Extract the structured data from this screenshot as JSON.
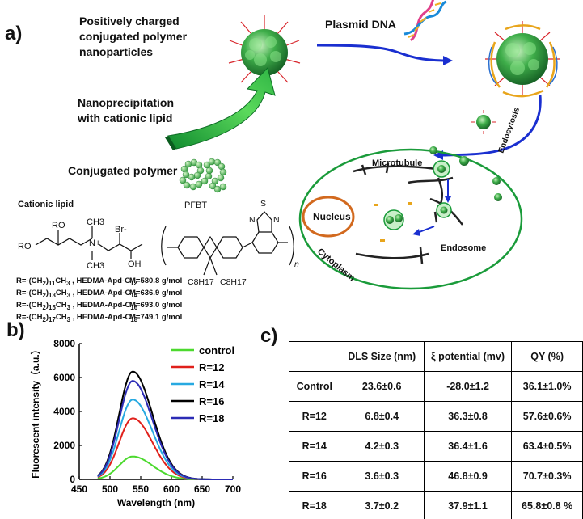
{
  "panel_a": {
    "label": "a)",
    "np_title": [
      "Positively charged",
      "conjugated polymer",
      "nanoparticles"
    ],
    "plasmid": "Plasmid DNA",
    "nanoprecip": [
      "Nanoprecipitation",
      "with cationic lipid"
    ],
    "conj_polymer": "Conjugated polymer",
    "cationic_lipid": "Cationic lipid",
    "pfbt": "PFBT",
    "endocytosis": "Endocytosis",
    "cell": {
      "microtubule": "Microtubule",
      "nucleus": "Nucleus",
      "cytoplasm": "Cytoplasm",
      "endosome": "Endosome"
    },
    "lipid_chem": {
      "ro1": "RO",
      "ro2": "RO",
      "n_plus": "N+",
      "ch3_top": "CH3",
      "ch3_bot": "CH3",
      "br": "Br-",
      "oh": "OH"
    },
    "pfbt_chem": {
      "s": "S",
      "n1": "N",
      "n2": "N",
      "n": "n",
      "c8a": "C8H17",
      "c8b": "C8H17"
    },
    "lipids": [
      {
        "r": "R=-(CH2)11CH3 , HEDMA-Apd-C12",
        "m": "M=580.8 g/mol"
      },
      {
        "r": "R=-(CH2)13CH3 , HEDMA-Apd-C14",
        "m": "M=636.9 g/mol"
      },
      {
        "r": "R=-(CH2)15CH3 , HEDMA-Apd-C16",
        "m": "M=693.0 g/mol"
      },
      {
        "r": "R=-(CH2)17CH3 , HEDMA-Apd-C18",
        "m": "M=749.1 g/mol"
      }
    ]
  },
  "panel_b": {
    "label": "b)"
  },
  "panel_c": {
    "label": "c)",
    "headers": [
      "",
      "DLS Size (nm)",
      "ξ potential (mv)",
      "QY (%)"
    ],
    "rows": [
      [
        "Control",
        "23.6±0.6",
        "-28.0±1.2",
        "36.1±1.0%"
      ],
      [
        "R=12",
        "6.8±0.4",
        "36.3±0.8",
        "57.6±0.6%"
      ],
      [
        "R=14",
        "4.2±0.3",
        "36.4±1.6",
        "63.4±0.5%"
      ],
      [
        "R=16",
        "3.6±0.3",
        "46.8±0.9",
        "70.7±0.3%"
      ],
      [
        "R=18",
        "3.7±0.2",
        "37.9±1.1",
        "65.8±0.8 %"
      ]
    ]
  },
  "chart_data": {
    "type": "line",
    "xlabel": "Wavelength (nm)",
    "ylabel": "Fluorescent intensity（a.u.）",
    "xlim": [
      450,
      700
    ],
    "ylim": [
      0,
      8000
    ],
    "xticks": [
      450,
      500,
      550,
      600,
      650,
      700
    ],
    "yticks": [
      0,
      2000,
      4000,
      6000,
      8000
    ],
    "peak_x": 537,
    "onset_x": 480,
    "legend_position": "top-right",
    "grid": false,
    "series": [
      {
        "name": "control",
        "color": "#4cd92e",
        "peak": 1350
      },
      {
        "name": "R=12",
        "color": "#e0201b",
        "peak": 3600
      },
      {
        "name": "R=14",
        "color": "#27a9e1",
        "peak": 4700
      },
      {
        "name": "R=16",
        "color": "#000000",
        "peak": 6350
      },
      {
        "name": "R=18",
        "color": "#2b2bb5",
        "peak": 5800
      }
    ]
  }
}
